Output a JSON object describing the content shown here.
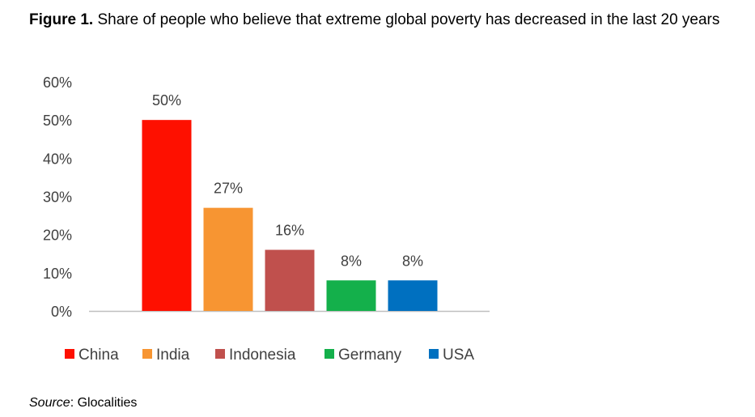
{
  "figure": {
    "label": "Figure 1.",
    "title": "Share of people who believe that extreme global poverty has decreased in the last 20 years"
  },
  "source": {
    "label": "Source",
    "text": ": Glocalities"
  },
  "chart_data": {
    "type": "bar",
    "categories": [
      "China",
      "India",
      "Indonesia",
      "Germany",
      "USA"
    ],
    "values": [
      50,
      27,
      16,
      8,
      8
    ],
    "data_labels": [
      "50%",
      "27%",
      "16%",
      "8%",
      "8%"
    ],
    "colors": [
      "#fe1000",
      "#f79532",
      "#c0504d",
      "#14b04b",
      "#0070c0"
    ],
    "ylim": [
      0,
      60
    ],
    "yticks": [
      "0%",
      "10%",
      "20%",
      "30%",
      "40%",
      "50%",
      "60%"
    ],
    "grid": false,
    "legend": {
      "position": "bottom",
      "entries": [
        "China",
        "India",
        "Indonesia",
        "Germany",
        "USA"
      ]
    },
    "xlabel": "",
    "ylabel": ""
  }
}
